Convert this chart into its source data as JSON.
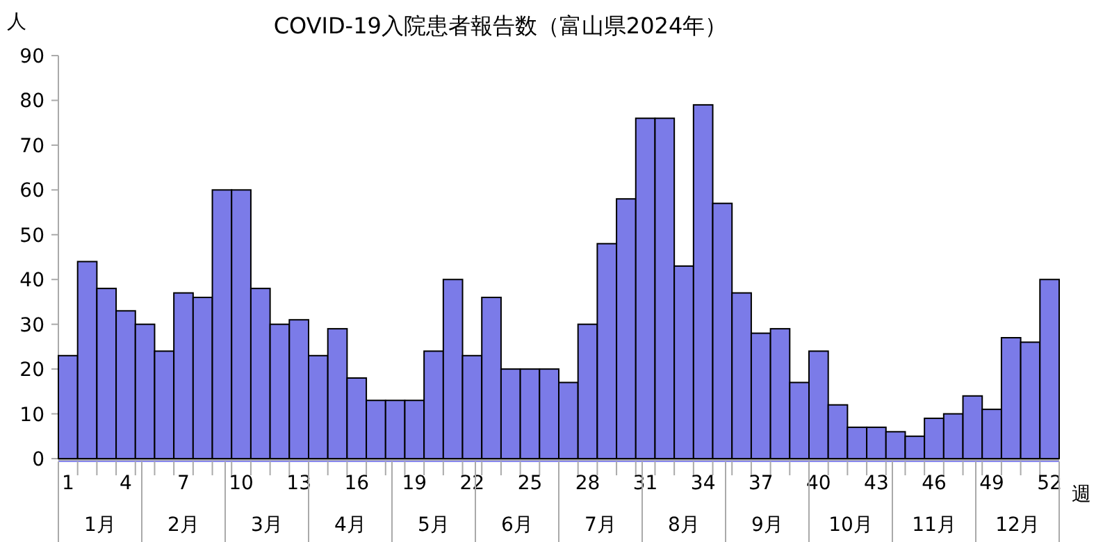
{
  "chart_data": {
    "type": "bar",
    "title": "COVID-19入院患者報告数（富山県2024年）",
    "ylabel": "人",
    "xlabel": "週",
    "categories": [
      "1",
      null,
      null,
      "4",
      null,
      null,
      "7",
      null,
      null,
      "10",
      null,
      null,
      "13",
      null,
      null,
      "16",
      null,
      null,
      "19",
      null,
      null,
      "22",
      null,
      null,
      "25",
      null,
      null,
      "28",
      null,
      null,
      "31",
      null,
      null,
      "34",
      null,
      null,
      "37",
      null,
      null,
      "40",
      null,
      null,
      "43",
      null,
      null,
      "46",
      null,
      null,
      "49",
      null,
      null,
      "52"
    ],
    "values": [
      23,
      44,
      38,
      33,
      30,
      24,
      37,
      36,
      60,
      60,
      38,
      30,
      31,
      23,
      29,
      18,
      13,
      13,
      13,
      24,
      40,
      23,
      36,
      20,
      20,
      20,
      17,
      30,
      48,
      58,
      76,
      76,
      43,
      79,
      57,
      37,
      28,
      29,
      17,
      24,
      12,
      7,
      7,
      6,
      5,
      9,
      10,
      14,
      11,
      27,
      26,
      40
    ],
    "color": "#7b7be8",
    "ylim": [
      0,
      90
    ],
    "yticks": [
      0,
      10,
      20,
      30,
      40,
      50,
      60,
      70,
      80,
      90
    ],
    "annotations": [
      "1月",
      "2月",
      "3月",
      "4月",
      "5月",
      "6月",
      "7月",
      "8月",
      "9月",
      "10月",
      "11月",
      "12月"
    ]
  }
}
